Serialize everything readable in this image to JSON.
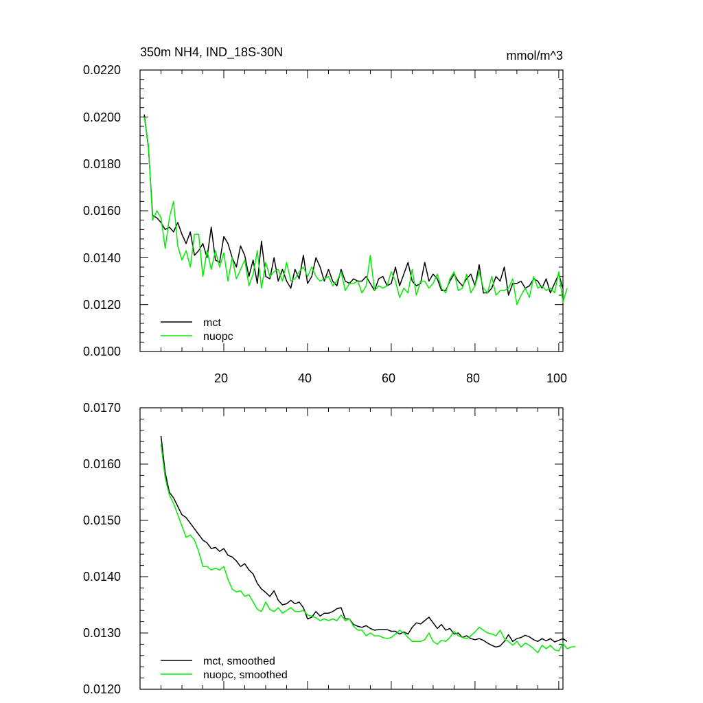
{
  "chart_data": [
    {
      "type": "line",
      "title": "350m NH4, IND_18S-30N",
      "units": "mmol/m^3",
      "xlim": [
        0,
        101
      ],
      "ylim": [
        0.01,
        0.022
      ],
      "x_ticks": [
        20,
        40,
        60,
        80,
        100
      ],
      "y_ticks": [
        "0.0100",
        "0.0120",
        "0.0140",
        "0.0160",
        "0.0180",
        "0.0200",
        "0.0220"
      ],
      "x_start": 1,
      "legend": "bottom-left",
      "series": [
        {
          "name": "mct",
          "color": "#000000",
          "values": [
            0.0201,
            0.0187,
            0.0158,
            0.0157,
            0.0155,
            0.0152,
            0.0153,
            0.0151,
            0.0155,
            0.015,
            0.0146,
            0.0151,
            0.0141,
            0.0143,
            0.0146,
            0.014,
            0.0153,
            0.0139,
            0.0138,
            0.0149,
            0.0146,
            0.014,
            0.0136,
            0.0145,
            0.0141,
            0.0132,
            0.0139,
            0.0129,
            0.0147,
            0.0132,
            0.0131,
            0.014,
            0.013,
            0.0135,
            0.013,
            0.0127,
            0.0135,
            0.0131,
            0.0141,
            0.0129,
            0.0132,
            0.014,
            0.0136,
            0.013,
            0.0135,
            0.013,
            0.0128,
            0.0135,
            0.013,
            0.0129,
            0.0131,
            0.013,
            0.013,
            0.0132,
            0.0129,
            0.0126,
            0.0131,
            0.0132,
            0.0128,
            0.0129,
            0.0136,
            0.0128,
            0.0133,
            0.0138,
            0.013,
            0.0128,
            0.0129,
            0.0138,
            0.013,
            0.0133,
            0.0131,
            0.0126,
            0.0126,
            0.013,
            0.0133,
            0.013,
            0.0128,
            0.0131,
            0.0133,
            0.0128,
            0.0137,
            0.0125,
            0.0125,
            0.0127,
            0.0132,
            0.013,
            0.0136,
            0.0124,
            0.0129,
            0.0129,
            0.013,
            0.0127,
            0.0128,
            0.0131,
            0.013,
            0.0127,
            0.0131,
            0.0125,
            0.0129,
            0.0133,
            0.0127
          ]
        },
        {
          "name": "nuopc",
          "color": "#00ee00",
          "values": [
            0.02,
            0.0188,
            0.0156,
            0.016,
            0.0157,
            0.0144,
            0.0157,
            0.0164,
            0.0145,
            0.0139,
            0.0143,
            0.0136,
            0.015,
            0.015,
            0.0132,
            0.0143,
            0.0135,
            0.0143,
            0.0136,
            0.0142,
            0.013,
            0.014,
            0.0131,
            0.0135,
            0.0139,
            0.0128,
            0.0133,
            0.0143,
            0.0127,
            0.0138,
            0.0132,
            0.0134,
            0.0135,
            0.013,
            0.0138,
            0.013,
            0.0131,
            0.0134,
            0.0136,
            0.0132,
            0.0136,
            0.0132,
            0.013,
            0.0131,
            0.0132,
            0.0128,
            0.013,
            0.0134,
            0.0126,
            0.0129,
            0.0129,
            0.013,
            0.0125,
            0.0128,
            0.0141,
            0.0126,
            0.0128,
            0.0127,
            0.0128,
            0.0134,
            0.013,
            0.0123,
            0.0127,
            0.0125,
            0.0135,
            0.0124,
            0.013,
            0.013,
            0.0127,
            0.0129,
            0.0133,
            0.0127,
            0.0125,
            0.0131,
            0.0134,
            0.0126,
            0.0127,
            0.0133,
            0.0125,
            0.0128,
            0.0134,
            0.0127,
            0.0125,
            0.0132,
            0.0124,
            0.0126,
            0.0126,
            0.0127,
            0.0131,
            0.012,
            0.0124,
            0.0127,
            0.0123,
            0.0132,
            0.0127,
            0.0128,
            0.0126,
            0.0127,
            0.0125,
            0.0134,
            0.0121,
            0.0127
          ]
        }
      ]
    },
    {
      "type": "line",
      "title": "",
      "xlim": [
        0,
        101
      ],
      "ylim": [
        0.012,
        0.017
      ],
      "x_ticks": [
        20,
        40,
        60,
        80,
        100
      ],
      "show_x_tick_labels": false,
      "y_ticks": [
        "0.0120",
        "0.0130",
        "0.0140",
        "0.0150",
        "0.0160",
        "0.0170"
      ],
      "x_start": 5,
      "legend": "bottom-left",
      "series": [
        {
          "name": "mct, smoothed",
          "color": "#000000",
          "values": [
            0.0165,
            0.01585,
            0.0155,
            0.0154,
            0.01525,
            0.0151,
            0.01505,
            0.01495,
            0.01485,
            0.01475,
            0.01465,
            0.0146,
            0.0145,
            0.01452,
            0.01445,
            0.0145,
            0.01438,
            0.01435,
            0.01428,
            0.01418,
            0.01423,
            0.01412,
            0.01405,
            0.01388,
            0.01378,
            0.01372,
            0.01365,
            0.01375,
            0.01358,
            0.0135,
            0.01352,
            0.01358,
            0.01352,
            0.01355,
            0.01345,
            0.01325,
            0.01328,
            0.01338,
            0.0133,
            0.01335,
            0.01335,
            0.01338,
            0.01343,
            0.01345,
            0.01325,
            0.01325,
            0.01315,
            0.01312,
            0.0131,
            0.01313,
            0.01308,
            0.01305,
            0.01306,
            0.01306,
            0.01306,
            0.01303,
            0.01303,
            0.01298,
            0.01302,
            0.01298,
            0.0131,
            0.01318,
            0.01316,
            0.01322,
            0.01328,
            0.01318,
            0.01308,
            0.01315,
            0.01305,
            0.01308,
            0.01298,
            0.013,
            0.01292,
            0.01295,
            0.0129,
            0.01288,
            0.0129,
            0.01287,
            0.01282,
            0.01278,
            0.01275,
            0.01277,
            0.01285,
            0.01297,
            0.01285,
            0.0129,
            0.01292,
            0.01296,
            0.01293,
            0.01288,
            0.01285,
            0.0129,
            0.01286,
            0.0129,
            0.01284,
            0.01287,
            0.0129,
            0.01285
          ],
          "data_note": "values start at x = 5"
        },
        {
          "name": "nuopc, smoothed",
          "color": "#00ee00",
          "values": [
            0.01635,
            0.01575,
            0.01545,
            0.0153,
            0.0151,
            0.0149,
            0.0147,
            0.01474,
            0.01465,
            0.01445,
            0.01418,
            0.01418,
            0.01412,
            0.01415,
            0.01412,
            0.01418,
            0.01395,
            0.01378,
            0.01373,
            0.01375,
            0.01365,
            0.01368,
            0.01355,
            0.01342,
            0.01338,
            0.01355,
            0.01342,
            0.01338,
            0.01345,
            0.01335,
            0.0134,
            0.01345,
            0.01338,
            0.01338,
            0.0134,
            0.01332,
            0.0133,
            0.01327,
            0.01322,
            0.01325,
            0.01322,
            0.01325,
            0.01322,
            0.01332,
            0.01322,
            0.01325,
            0.01312,
            0.01305,
            0.01305,
            0.01295,
            0.013,
            0.01295,
            0.01295,
            0.01292,
            0.0129,
            0.01292,
            0.01298,
            0.01305,
            0.013,
            0.01292,
            0.01285,
            0.01285,
            0.01285,
            0.01288,
            0.013,
            0.01285,
            0.0128,
            0.01287,
            0.01285,
            0.01292,
            0.01303,
            0.01295,
            0.01292,
            0.0129,
            0.01295,
            0.01302,
            0.0131,
            0.01305,
            0.013,
            0.01298,
            0.01295,
            0.01305,
            0.0129,
            0.01285,
            0.01278,
            0.01285,
            0.01275,
            0.01282,
            0.01278,
            0.01272,
            0.01265,
            0.01278,
            0.01272,
            0.01278,
            0.0127,
            0.01268,
            0.01282,
            0.01272,
            0.01275,
            0.01276
          ],
          "data_note": "values start at x = 5"
        }
      ]
    }
  ]
}
